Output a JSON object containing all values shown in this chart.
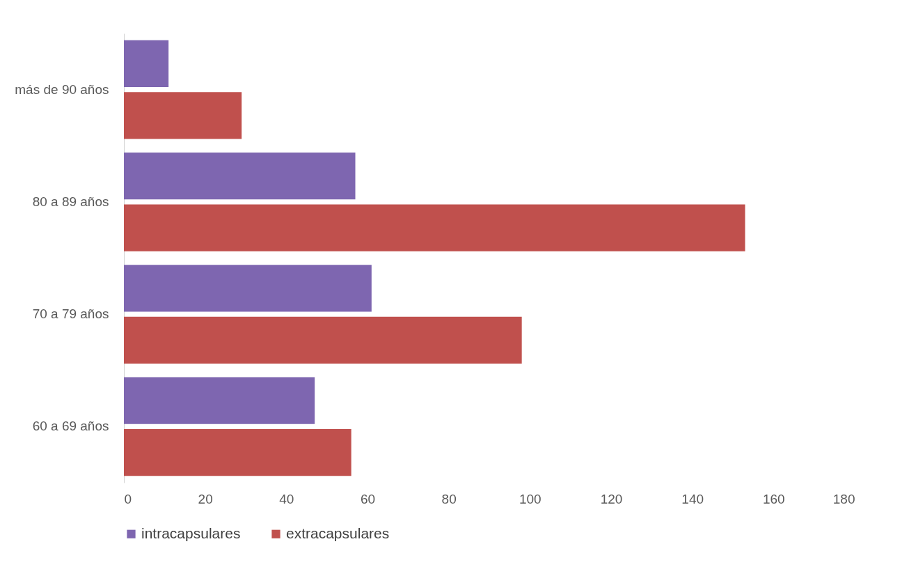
{
  "chart_data": {
    "type": "bar",
    "orientation": "horizontal",
    "categories": [
      "más de 90 años",
      "80 a 89 años",
      "70 a 79 años",
      "60 a 69 años"
    ],
    "series": [
      {
        "name": "intracapsulares",
        "color": "#7e66b0",
        "values": [
          11,
          57,
          61,
          47
        ]
      },
      {
        "name": "extracapsulares",
        "color": "#c0504d",
        "values": [
          29,
          153,
          98,
          56
        ]
      }
    ],
    "xlim": [
      0,
      180
    ],
    "xticks": [
      0,
      20,
      40,
      60,
      80,
      100,
      120,
      140,
      160,
      180
    ],
    "grid": false,
    "legend": "bottom"
  }
}
